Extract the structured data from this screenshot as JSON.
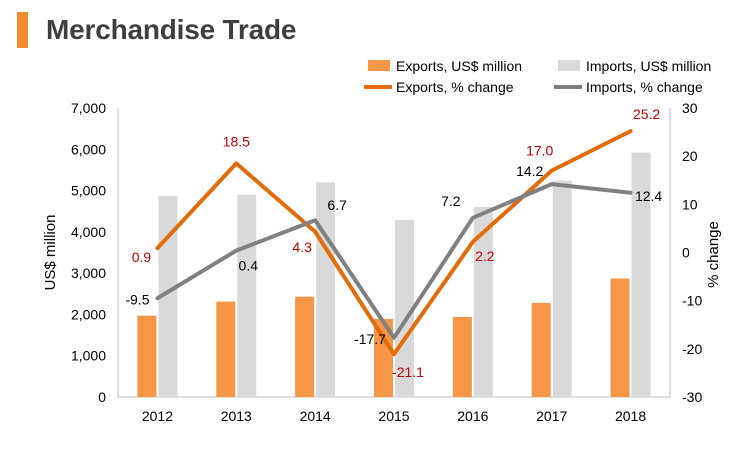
{
  "header": {
    "title": "Merchandise Trade"
  },
  "chart_data": {
    "type": "bar",
    "categories": [
      "2012",
      "2013",
      "2014",
      "2015",
      "2016",
      "2017",
      "2018"
    ],
    "series": [
      {
        "name": "Exports, US$ million",
        "type": "bar",
        "axis": "left",
        "color": "#f79646",
        "values": [
          1970,
          2310,
          2430,
          1890,
          1940,
          2280,
          2870
        ]
      },
      {
        "name": "Imports, US$ million",
        "type": "bar",
        "axis": "left",
        "color": "#d9d9d9",
        "values": [
          4870,
          4900,
          5200,
          4290,
          4600,
          5240,
          5920
        ]
      },
      {
        "name": "Exports, % change",
        "type": "line",
        "axis": "right",
        "color": "#e36c0a",
        "label_color": "#c00000",
        "values": [
          0.9,
          18.5,
          4.3,
          -21.1,
          2.2,
          17.0,
          25.2
        ],
        "labels": [
          "0.9",
          "18.5",
          "4.3",
          "-21.1",
          "2.2",
          "17.0",
          "25.2"
        ]
      },
      {
        "name": "Imports, % change",
        "type": "line",
        "axis": "right",
        "color": "#808080",
        "label_color": "#000000",
        "values": [
          -9.5,
          0.4,
          6.7,
          -17.7,
          7.2,
          14.2,
          12.4
        ],
        "labels": [
          "-9.5",
          "0.4",
          "6.7",
          "-17.7",
          "7.2",
          "14.2",
          "12.4"
        ]
      }
    ],
    "ylabel": "US$ million",
    "y2label": "% change",
    "ylim": [
      0,
      7000
    ],
    "y2lim": [
      -30,
      30
    ],
    "yticks": [
      "0",
      "1,000",
      "2,000",
      "3,000",
      "4,000",
      "5,000",
      "6,000",
      "7,000"
    ],
    "y2ticks": [
      "-30",
      "-20",
      "-10",
      "0",
      "10",
      "20",
      "30"
    ],
    "grid": false,
    "legend": "top-right"
  }
}
